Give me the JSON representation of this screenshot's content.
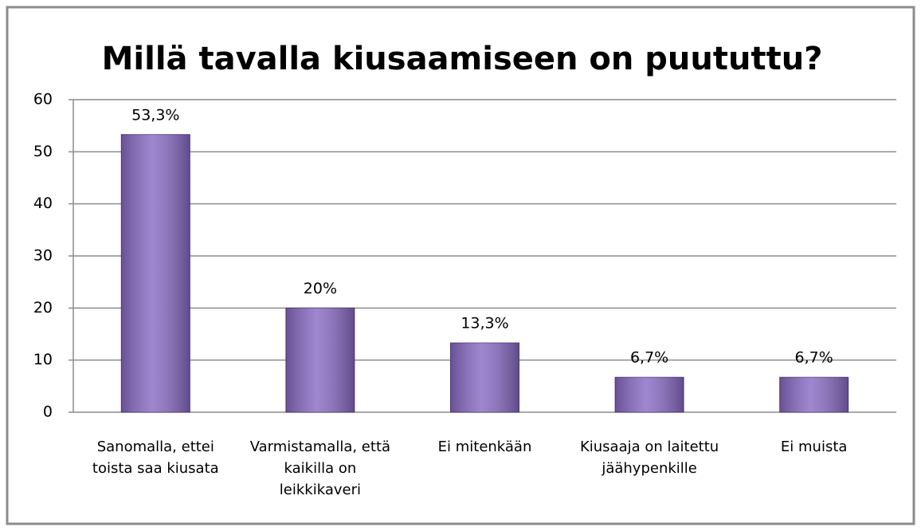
{
  "chart_data": {
    "type": "bar",
    "title": "Millä tavalla kiusaamiseen on puututtu?",
    "categories": [
      "Sanomalla, ettei toista saa kiusata",
      "Varmistamalla, että kaikilla on leikkikaveri",
      "Ei mitenkään",
      "Kiusaaja on laitettu jäähypenkille",
      "Ei muista"
    ],
    "values": [
      53.3,
      20,
      13.3,
      6.7,
      6.7
    ],
    "value_labels": [
      "53,3%",
      "20%",
      "13,3%",
      "6,7%",
      "6,7%"
    ],
    "color": "#8a6cc4",
    "ylim": [
      0,
      60
    ],
    "yticks": [
      0,
      10,
      20,
      30,
      40,
      50,
      60
    ],
    "grid": true
  }
}
